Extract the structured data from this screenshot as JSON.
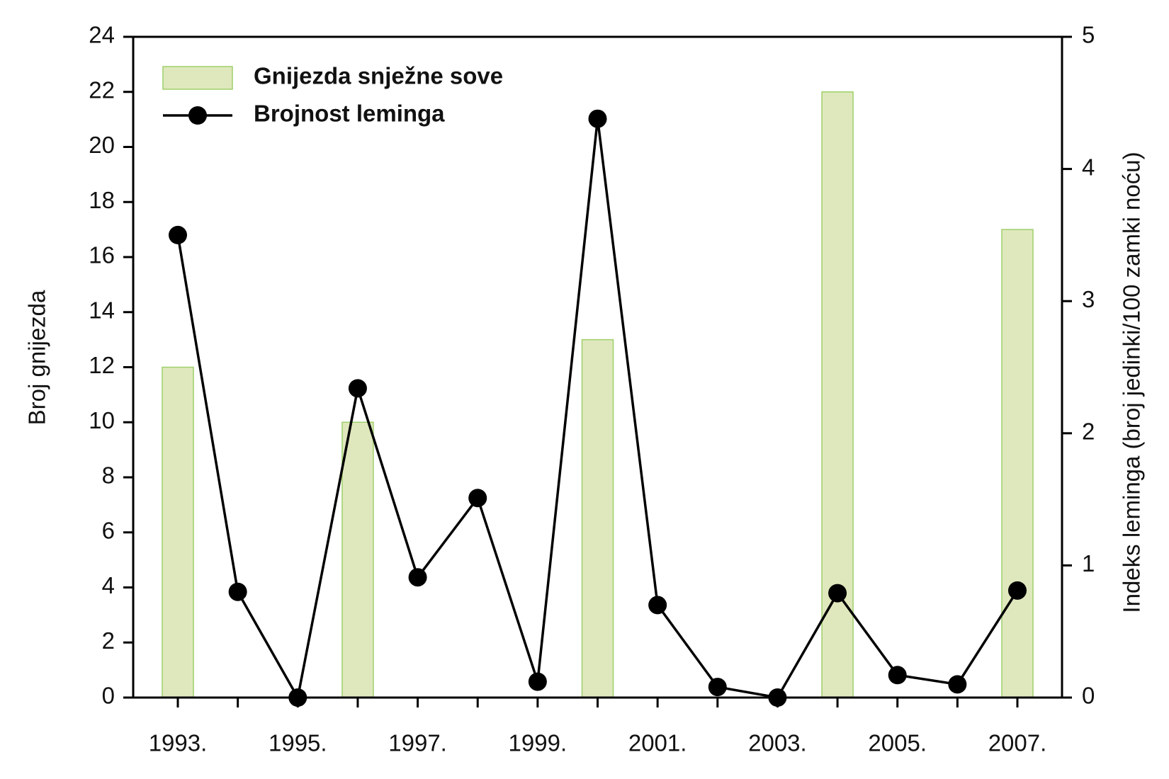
{
  "chart_data": {
    "type": "bar-line",
    "categories": [
      "1993.",
      null,
      "1995.",
      null,
      "1997.",
      null,
      "1999.",
      null,
      "2001.",
      null,
      "2003.",
      null,
      "2005.",
      null,
      "2007."
    ],
    "series": [
      {
        "name": "Gnijezda snježne sove",
        "type": "bar",
        "color": "#dfe8bd",
        "values": [
          12,
          null,
          null,
          10,
          null,
          null,
          null,
          13,
          null,
          null,
          null,
          22,
          null,
          null,
          17
        ]
      },
      {
        "name": "Brojnost leminga",
        "type": "line",
        "axis": "y2",
        "color": "#000000",
        "values": [
          3.5,
          0.8,
          0,
          2.34,
          0.91,
          1.51,
          0.12,
          4.38,
          0.7,
          0.08,
          0,
          0.79,
          0.17,
          0.1,
          0.81
        ]
      }
    ],
    "y_label": "Broj gnijezda",
    "y2_label": "Indeks leminga (broj jedinki/100 zamki noću)",
    "ylim": [
      0,
      24
    ],
    "yticks": [
      0,
      2,
      4,
      6,
      8,
      10,
      12,
      14,
      16,
      18,
      20,
      22,
      24
    ],
    "y2lim": [
      0,
      5
    ],
    "y2ticks": [
      0,
      1,
      2,
      3,
      4,
      5
    ],
    "legend": "upper-left"
  }
}
